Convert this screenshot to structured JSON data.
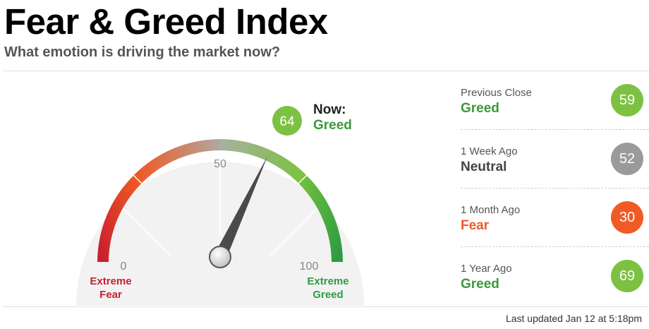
{
  "header": {
    "title": "Fear & Greed Index",
    "subtitle": "What emotion is driving the market now?"
  },
  "gauge": {
    "value": 64,
    "min": 0,
    "max": 100,
    "now_label": "Now:",
    "now_rating": "Greed",
    "tick_min": "0",
    "tick_mid": "50",
    "tick_max": "100",
    "left_label_line1": "Extreme",
    "left_label_line2": "Fear",
    "right_label_line1": "Extreme",
    "right_label_line2": "Greed",
    "colors": {
      "extreme_fear": "#c8202f",
      "fear": "#f05a24",
      "neutral": "#9a9a9a",
      "greed": "#7dc142",
      "extreme_greed": "#2e9b41"
    }
  },
  "history": [
    {
      "label": "Previous Close",
      "rating": "Greed",
      "value": "59",
      "color": "#7dc142",
      "rating_color": "#3a9a3a"
    },
    {
      "label": "1 Week Ago",
      "rating": "Neutral",
      "value": "52",
      "color": "#9a9a9a",
      "rating_color": "#444444"
    },
    {
      "label": "1 Month Ago",
      "rating": "Fear",
      "value": "30",
      "color": "#f05a24",
      "rating_color": "#f05a24"
    },
    {
      "label": "1 Year Ago",
      "rating": "Greed",
      "value": "69",
      "color": "#7dc142",
      "rating_color": "#3a9a3a"
    }
  ],
  "footer": {
    "last_updated": "Last updated Jan 12 at 5:18pm"
  }
}
